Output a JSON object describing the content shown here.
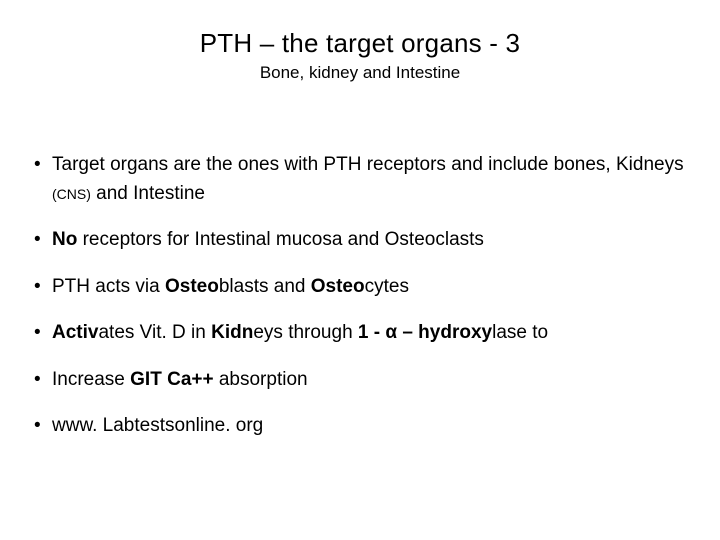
{
  "colors": {
    "background": "#ffffff",
    "text": "#000000"
  },
  "typography": {
    "title_fontsize": 26,
    "subtitle_fontsize": 17,
    "bullet_fontsize": 19,
    "small_fontsize": 14,
    "source_fontsize": 15,
    "font_family": "Arial"
  },
  "title": "PTH – the target organs - 3",
  "subtitle": "Bone, kidney and Intestine",
  "bullets": {
    "b1a": "Target organs are the ones with PTH receptors and include bones, Kidneys ",
    "b1b_small": "(CNS)",
    "b1c": " and Intestine",
    "b2a_bold": "No ",
    "b2b": "receptors for Intestinal mucosa  and Osteoclasts",
    "b3a": "PTH acts via ",
    "b3b_bold": "Osteo",
    "b3c": "blasts and ",
    "b3d_bold": "Osteo",
    "b3e": "cytes",
    "b4a_bold": "Activ",
    "b4b": "ates Vit. D in ",
    "b4c_bold": "Kidn",
    "b4d": "eys through ",
    "b4e_bold": "1 - α – hydroxy",
    "b4f": "lase to",
    "b5a": "Increase ",
    "b5b_bold": "GIT Ca++ ",
    "b5c": "absorption",
    "b6": "www. Labtestsonline. org"
  }
}
